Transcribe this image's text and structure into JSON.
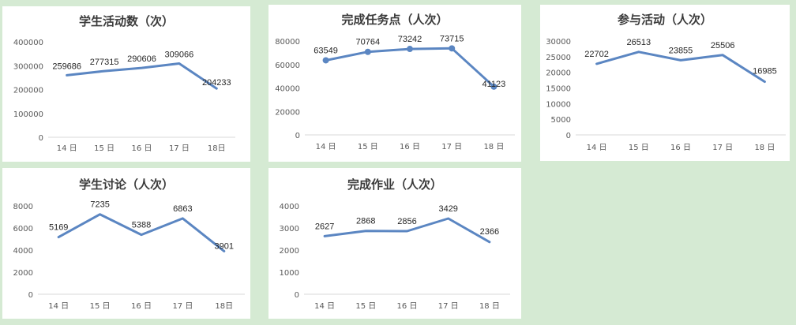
{
  "colors": {
    "page_background": "#d5ead3",
    "panel_background": "#ffffff",
    "series_line": "#5b86c2",
    "axis": "#d9d9d9"
  },
  "chart_data": [
    {
      "type": "line",
      "title": "学生活动数（次）",
      "categories": [
        "14 日",
        "15 日",
        "16 日",
        "17 日",
        "18日"
      ],
      "series": [
        {
          "values": [
            259686,
            277315,
            290606,
            309066,
            204233
          ]
        }
      ],
      "data_labels": [
        "259686",
        "277315",
        "290606",
        "309066",
        "204233"
      ],
      "ylim": [
        0,
        400000
      ],
      "y_ticks": [
        0,
        100000,
        200000,
        300000,
        400000
      ],
      "markers": false,
      "grid": false,
      "legend": "none"
    },
    {
      "type": "line",
      "title": "完成任务点（人次）",
      "categories": [
        "14 日",
        "15 日",
        "16 日",
        "17 日",
        "18 日"
      ],
      "series": [
        {
          "values": [
            63549,
            70764,
            73242,
            73715,
            41123
          ]
        }
      ],
      "data_labels": [
        "63549",
        "70764",
        "73242",
        "73715",
        "41123"
      ],
      "ylim": [
        0,
        80000
      ],
      "y_ticks": [
        0,
        20000,
        40000,
        60000,
        80000
      ],
      "markers": true,
      "grid": false,
      "legend": "none"
    },
    {
      "type": "line",
      "title": "参与活动（人次）",
      "categories": [
        "14 日",
        "15 日",
        "16 日",
        "17 日",
        "18 日"
      ],
      "series": [
        {
          "values": [
            22702,
            26513,
            23855,
            25506,
            16985
          ]
        }
      ],
      "data_labels": [
        "22702",
        "26513",
        "23855",
        "25506",
        "16985"
      ],
      "ylim": [
        0,
        30000
      ],
      "y_ticks": [
        0,
        5000,
        10000,
        15000,
        20000,
        25000,
        30000
      ],
      "markers": false,
      "grid": false,
      "legend": "none"
    },
    {
      "type": "line",
      "title": "学生讨论（人次）",
      "categories": [
        "14 日",
        "15 日",
        "16 日",
        "17 日",
        "18日"
      ],
      "series": [
        {
          "values": [
            5169,
            7235,
            5388,
            6863,
            3901
          ]
        }
      ],
      "data_labels": [
        "5169",
        "7235",
        "5388",
        "6863",
        "3901"
      ],
      "ylim": [
        0,
        8000
      ],
      "y_ticks": [
        0,
        2000,
        4000,
        6000,
        8000
      ],
      "markers": false,
      "grid": false,
      "legend": "none"
    },
    {
      "type": "line",
      "title": "完成作业（人次）",
      "categories": [
        "14 日",
        "15 日",
        "16 日",
        "17 日",
        "18 日"
      ],
      "series": [
        {
          "values": [
            2627,
            2868,
            2856,
            3429,
            2366
          ]
        }
      ],
      "data_labels": [
        "2627",
        "2868",
        "2856",
        "3429",
        "2366"
      ],
      "ylim": [
        0,
        4000
      ],
      "y_ticks": [
        0,
        1000,
        2000,
        3000,
        4000
      ],
      "markers": false,
      "grid": false,
      "legend": "none"
    }
  ]
}
